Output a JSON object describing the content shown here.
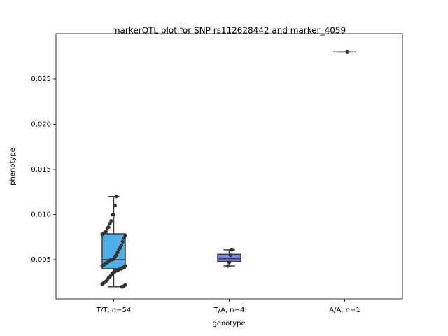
{
  "chart_data": {
    "type": "box",
    "title": "markerQTL plot for SNP rs112628442 and marker_4059",
    "x_label": "genotype",
    "y_label": "phenotype",
    "categories": [
      "T/T, n=54",
      "T/A, n=4",
      "A/A, n=1"
    ],
    "boxes": [
      {
        "min": 0.002,
        "q1": 0.004,
        "median": 0.005,
        "q3": 0.00787,
        "max": 0.012,
        "color": "#4daeea"
      },
      {
        "min": 0.0043,
        "q1": 0.0048,
        "median": 0.0051,
        "q3": 0.0056,
        "max": 0.0061,
        "color": "#7f83e3"
      },
      {
        "min": 0.028,
        "q1": 0.028,
        "median": 0.028,
        "q3": 0.028,
        "max": 0.028,
        "color": "#6cc48c"
      }
    ],
    "points": [
      [
        0.012,
        0.011,
        0.01,
        0.01,
        0.0093,
        0.009,
        0.0086,
        0.0085,
        0.0081,
        0.008,
        0.0079,
        0.0078,
        0.0077,
        0.0074,
        0.007,
        0.0066,
        0.0063,
        0.0061,
        0.0058,
        0.0055,
        0.0053,
        0.0051,
        0.005,
        0.005,
        0.0049,
        0.0048,
        0.0047,
        0.0046,
        0.0045,
        0.0044,
        0.0043,
        0.0043,
        0.0042,
        0.0041,
        0.004,
        0.004,
        0.0039,
        0.0038,
        0.0038,
        0.0037,
        0.0036,
        0.0035,
        0.0033,
        0.0031,
        0.003,
        0.0028,
        0.0026,
        0.0025,
        0.0024,
        0.0023,
        0.0022,
        0.0021,
        0.002,
        0.002
      ],
      [
        0.0061,
        0.0055,
        0.0047,
        0.0043
      ],
      [
        0.028
      ]
    ],
    "point_color": "#333333",
    "ylim": [
      0.00066,
      0.03004
    ],
    "yticks": [
      0.005,
      {
        "value": 0.01,
        "label": "0.010"
      },
      0.015,
      {
        "value": 0.02,
        "label": "0.020"
      },
      0.025
    ]
  }
}
